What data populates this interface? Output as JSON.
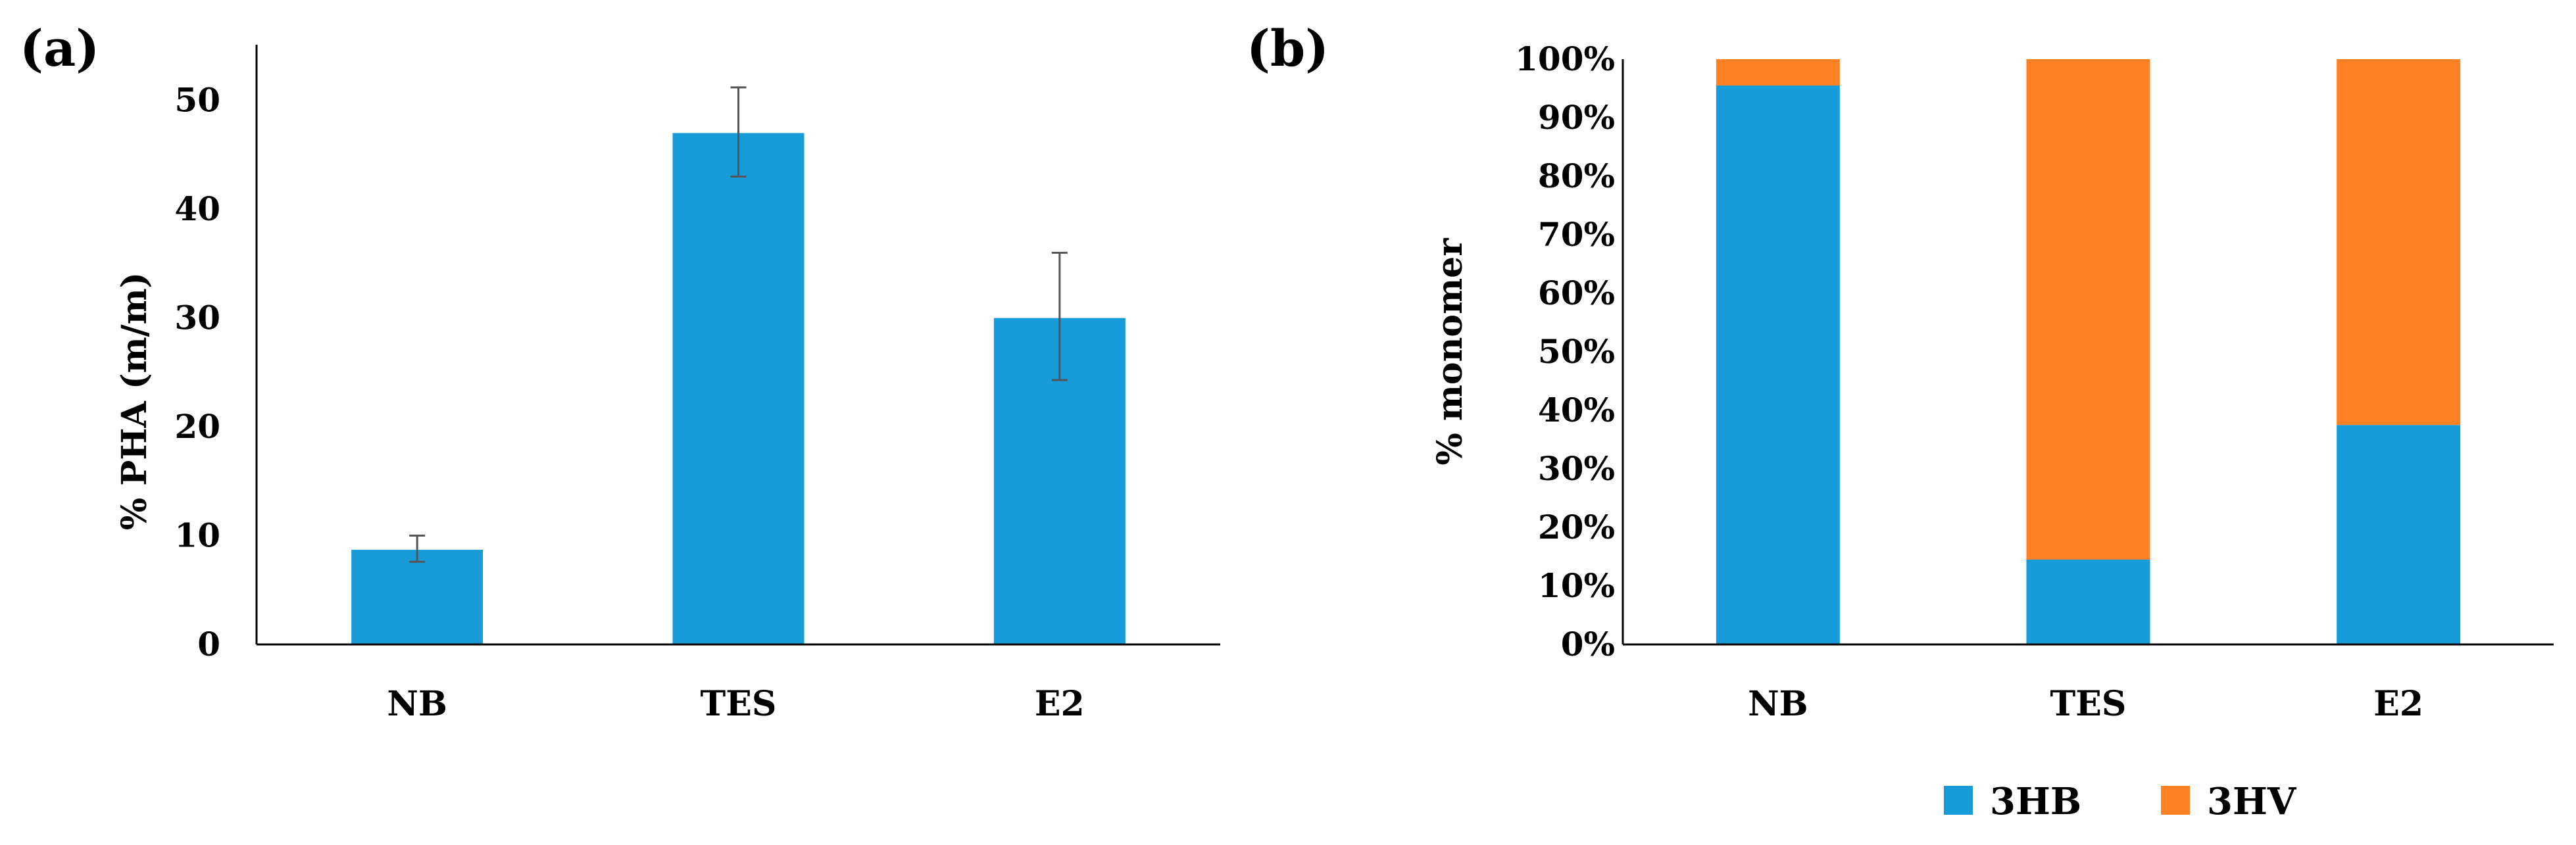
{
  "colors": {
    "hb": "#179cd9",
    "hv": "#ff8124",
    "axis": "#000000",
    "error": "#555555"
  },
  "chart_data": [
    {
      "type": "bar",
      "panel_label": "(a)",
      "ylabel": "% PHA (m/m)",
      "ylim": [
        0,
        55
      ],
      "yticks": [
        "0",
        "10",
        "20",
        "30",
        "40",
        "50"
      ],
      "categories": [
        "NB",
        "TES",
        "E2"
      ],
      "values": [
        8.7,
        47.0,
        30.0
      ],
      "error_low": [
        7.6,
        43.0,
        24.3
      ],
      "error_high": [
        10.0,
        51.2,
        36.0
      ]
    },
    {
      "type": "bar",
      "stacked": true,
      "panel_label": "(b)",
      "ylabel": "% monomer",
      "ylim": [
        0,
        100
      ],
      "yticks": [
        "0%",
        "10%",
        "20%",
        "30%",
        "40%",
        "50%",
        "60%",
        "70%",
        "80%",
        "90%",
        "100%"
      ],
      "categories": [
        "NB",
        "TES",
        "E2"
      ],
      "series": [
        {
          "name": "3HB",
          "values": [
            95.5,
            14.5,
            37.5
          ]
        },
        {
          "name": "3HV",
          "values": [
            4.5,
            85.5,
            62.5
          ]
        }
      ],
      "legend_position": "bottom-center"
    }
  ]
}
